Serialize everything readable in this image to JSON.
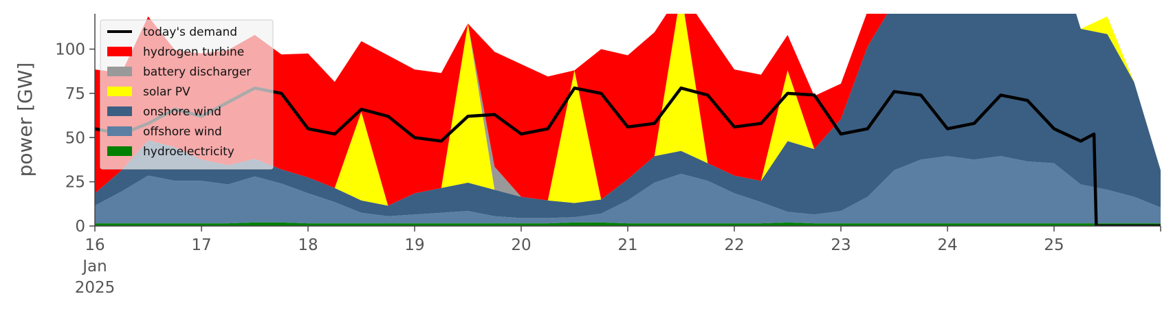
{
  "chart_data": {
    "type": "area",
    "xlabel": "",
    "ylabel": "power [GW]",
    "x_range": [
      "2025-01-16 00:00",
      "2025-01-26 00:00"
    ],
    "ylim": [
      0,
      120
    ],
    "yticks": [
      0,
      25,
      50,
      75,
      100
    ],
    "xticks": [
      {
        "date": "2025-01-16",
        "label": "16",
        "sub": [
          "Jan",
          "2025"
        ]
      },
      {
        "date": "2025-01-17",
        "label": "17",
        "sub": []
      },
      {
        "date": "2025-01-18",
        "label": "18",
        "sub": []
      },
      {
        "date": "2025-01-19",
        "label": "19",
        "sub": []
      },
      {
        "date": "2025-01-20",
        "label": "20",
        "sub": []
      },
      {
        "date": "2025-01-21",
        "label": "21",
        "sub": []
      },
      {
        "date": "2025-01-22",
        "label": "22",
        "sub": []
      },
      {
        "date": "2025-01-23",
        "label": "23",
        "sub": []
      },
      {
        "date": "2025-01-24",
        "label": "24",
        "sub": []
      },
      {
        "date": "2025-01-25",
        "label": "25",
        "sub": []
      }
    ],
    "grid": false,
    "legend_position": "top-left",
    "x": [
      "2025-01-16 00:00",
      "2025-01-16 06:00",
      "2025-01-16 12:00",
      "2025-01-16 18:00",
      "2025-01-17 00:00",
      "2025-01-17 06:00",
      "2025-01-17 12:00",
      "2025-01-17 18:00",
      "2025-01-18 00:00",
      "2025-01-18 06:00",
      "2025-01-18 12:00",
      "2025-01-18 18:00",
      "2025-01-19 00:00",
      "2025-01-19 06:00",
      "2025-01-19 12:00",
      "2025-01-19 18:00",
      "2025-01-20 00:00",
      "2025-01-20 06:00",
      "2025-01-20 12:00",
      "2025-01-20 18:00",
      "2025-01-21 00:00",
      "2025-01-21 06:00",
      "2025-01-21 12:00",
      "2025-01-21 18:00",
      "2025-01-22 00:00",
      "2025-01-22 06:00",
      "2025-01-22 12:00",
      "2025-01-22 18:00",
      "2025-01-23 00:00",
      "2025-01-23 06:00",
      "2025-01-23 12:00",
      "2025-01-23 18:00",
      "2025-01-24 00:00",
      "2025-01-24 06:00",
      "2025-01-24 12:00",
      "2025-01-24 18:00",
      "2025-01-25 00:00",
      "2025-01-25 06:00",
      "2025-01-25 12:00",
      "2025-01-25 18:00",
      "2025-01-26 00:00"
    ],
    "series": [
      {
        "name": "hydroelectricity",
        "color": "#008000",
        "values": [
          1.5,
          1.5,
          1.5,
          1.5,
          1.5,
          1.5,
          2,
          2,
          1.5,
          1.5,
          1.5,
          1.5,
          1.5,
          1.5,
          1.5,
          1.5,
          1.5,
          1.5,
          2,
          2,
          1.5,
          1.5,
          1.5,
          1.5,
          1.5,
          1.5,
          2,
          1.5,
          1.5,
          1.5,
          1.5,
          1.5,
          1.5,
          1.5,
          1.5,
          1.5,
          1.5,
          1.5,
          1.5,
          1.5,
          1.5
        ]
      },
      {
        "name": "offshore wind",
        "color": "#5b7fa3",
        "values": [
          10,
          18,
          27,
          24,
          24,
          22,
          26,
          22,
          17,
          12,
          6,
          4,
          5,
          6,
          7,
          4,
          3,
          3,
          3,
          5,
          13,
          23,
          28,
          24,
          17,
          12,
          6,
          5,
          7,
          15,
          30,
          36,
          38,
          36,
          38,
          35,
          34,
          22,
          19,
          15,
          9
        ]
      },
      {
        "name": "onshore wind",
        "color": "#3b5f82",
        "values": [
          7,
          12,
          20,
          19,
          12,
          11,
          10,
          8,
          9,
          8,
          7,
          6,
          12,
          14,
          16,
          15,
          12,
          10,
          8,
          8,
          12,
          15,
          13,
          10,
          10,
          12,
          40,
          37,
          52,
          85,
          95,
          110,
          110,
          120,
          125,
          130,
          125,
          88,
          88,
          65,
          21
        ]
      },
      {
        "name": "solar PV",
        "color": "#ffff00",
        "values": [
          0,
          0,
          0,
          0,
          0,
          0,
          0,
          0,
          0,
          0,
          50,
          0,
          0,
          0,
          90,
          0,
          0,
          0,
          75,
          0,
          0,
          0,
          90,
          0,
          0,
          0,
          40,
          0,
          0,
          0,
          0,
          0,
          0,
          0,
          0,
          0,
          0,
          0,
          10,
          0,
          0
        ]
      },
      {
        "name": "battery discharger",
        "color": "#999999",
        "values": [
          0,
          0,
          0,
          0,
          0,
          0,
          0,
          0,
          0,
          0,
          0,
          0,
          0,
          0,
          0,
          13,
          0,
          0,
          0,
          0,
          0,
          0,
          0,
          0,
          0,
          0,
          0,
          0,
          0,
          0,
          0,
          0,
          0,
          0,
          0,
          0,
          0,
          0,
          0,
          0,
          0
        ]
      },
      {
        "name": "hydrogen turbine",
        "color": "#ff0000",
        "values": [
          70,
          55,
          70,
          55,
          60,
          65,
          70,
          65,
          70,
          60,
          40,
          85,
          70,
          65,
          0,
          65,
          75,
          70,
          0,
          85,
          70,
          70,
          0,
          75,
          60,
          60,
          20,
          30,
          20,
          20,
          0,
          0,
          0,
          0,
          0,
          0,
          0,
          0,
          0,
          0,
          0
        ]
      }
    ],
    "line": {
      "name": "today's demand",
      "color": "#000000",
      "points": [
        [
          "2025-01-16 00:00",
          55
        ],
        [
          "2025-01-16 06:00",
          52
        ],
        [
          "2025-01-16 12:00",
          58
        ],
        [
          "2025-01-16 18:00",
          66
        ],
        [
          "2025-01-17 00:00",
          62
        ],
        [
          "2025-01-17 06:00",
          70
        ],
        [
          "2025-01-17 12:00",
          78
        ],
        [
          "2025-01-17 18:00",
          75
        ],
        [
          "2025-01-18 00:00",
          55
        ],
        [
          "2025-01-18 06:00",
          52
        ],
        [
          "2025-01-18 12:00",
          66
        ],
        [
          "2025-01-18 18:00",
          62
        ],
        [
          "2025-01-19 00:00",
          50
        ],
        [
          "2025-01-19 06:00",
          48
        ],
        [
          "2025-01-19 12:00",
          62
        ],
        [
          "2025-01-19 18:00",
          63
        ],
        [
          "2025-01-20 00:00",
          52
        ],
        [
          "2025-01-20 06:00",
          55
        ],
        [
          "2025-01-20 12:00",
          78
        ],
        [
          "2025-01-20 18:00",
          75
        ],
        [
          "2025-01-21 00:00",
          56
        ],
        [
          "2025-01-21 06:00",
          58
        ],
        [
          "2025-01-21 12:00",
          78
        ],
        [
          "2025-01-21 18:00",
          74
        ],
        [
          "2025-01-22 00:00",
          56
        ],
        [
          "2025-01-22 06:00",
          58
        ],
        [
          "2025-01-22 12:00",
          75
        ],
        [
          "2025-01-22 18:00",
          74
        ],
        [
          "2025-01-23 00:00",
          52
        ],
        [
          "2025-01-23 06:00",
          55
        ],
        [
          "2025-01-23 12:00",
          76
        ],
        [
          "2025-01-23 18:00",
          74
        ],
        [
          "2025-01-24 00:00",
          55
        ],
        [
          "2025-01-24 06:00",
          58
        ],
        [
          "2025-01-24 12:00",
          74
        ],
        [
          "2025-01-24 18:00",
          71
        ],
        [
          "2025-01-25 00:00",
          55
        ],
        [
          "2025-01-25 06:00",
          48
        ],
        [
          "2025-01-25 09:00",
          52
        ],
        [
          "2025-01-25 09:30",
          0
        ],
        [
          "2025-01-26 00:00",
          0
        ]
      ]
    },
    "legend": [
      "today's demand",
      "hydrogen turbine",
      "battery discharger",
      "solar PV",
      "onshore wind",
      "offshore wind",
      "hydroelectricity"
    ]
  }
}
